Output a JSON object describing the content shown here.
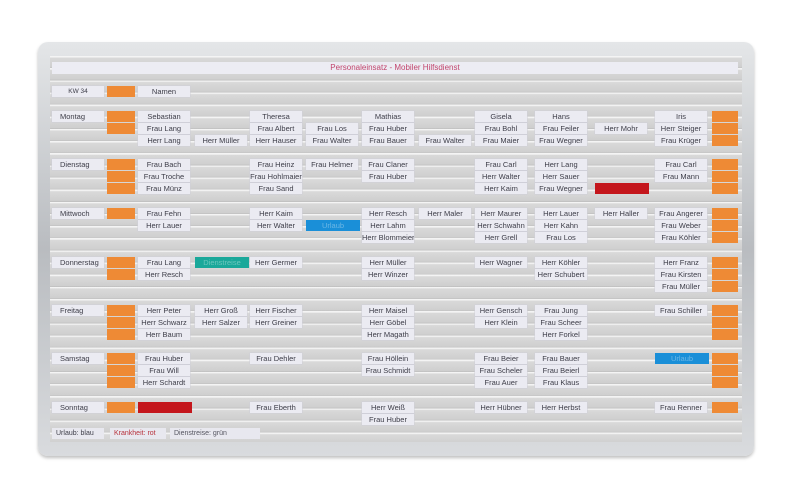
{
  "board": {
    "title": "Personaleinsatz - Mobiler Hilfsdienst",
    "week_label": "KW 34",
    "names_header": "Namen",
    "colors": {
      "flag": "#ee8a35",
      "blue": "#1a8fd8",
      "red": "#c4161c",
      "green": "#1aa89a"
    },
    "legend": [
      {
        "text": "Urlaub: blau",
        "color": "#3d3d48"
      },
      {
        "text": "Krankheit: rot",
        "color": "#b8323c"
      },
      {
        "text": "Dienstreise: grün",
        "color": "#555560"
      }
    ],
    "days": [
      {
        "name": "Montag",
        "rows": [
          {
            "left_flag": true,
            "right_flag": true,
            "cells": [
              "Sebastian",
              "",
              "Theresa",
              "",
              "Mathias",
              "",
              "Gisela",
              "Hans",
              "",
              "Iris"
            ]
          },
          {
            "left_flag": true,
            "right_flag": true,
            "cells": [
              "Frau Lang",
              "",
              "Frau Albert",
              "Frau Los",
              "Frau Huber",
              "",
              "Frau Bohl",
              "Frau Feiler",
              "Herr Mohr",
              "Herr Steiger"
            ]
          },
          {
            "left_flag": false,
            "right_flag": true,
            "cells": [
              "Herr Lang",
              "Herr Müller",
              "Herr Hauser",
              "Frau Walter",
              "Frau Bauer",
              "Frau Walter",
              "Frau Maier",
              "Frau Wegner",
              "",
              "Frau Krüger"
            ]
          }
        ]
      },
      {
        "name": "Dienstag",
        "rows": [
          {
            "left_flag": true,
            "right_flag": true,
            "cells": [
              "Frau Bach",
              "",
              "Frau Heinz",
              "Frau Helmer",
              "Frau Claner",
              "",
              "Frau Carl",
              "Herr Lang",
              "",
              "Frau Carl"
            ]
          },
          {
            "left_flag": true,
            "right_flag": true,
            "cells": [
              "Frau Troche",
              "",
              "Frau Hohlmaier",
              "",
              "Frau Huber",
              "",
              "Herr Walter",
              "Herr Sauer",
              "",
              "Frau Mann"
            ]
          },
          {
            "left_flag": true,
            "right_flag": true,
            "cells": [
              "Frau Münz",
              "",
              "Frau Sand",
              "",
              "",
              "",
              "Herr Kaim",
              "Frau Wegner",
              {
                "marker": "red",
                "label": ""
              },
              ""
            ]
          }
        ]
      },
      {
        "name": "Mittwoch",
        "rows": [
          {
            "left_flag": true,
            "right_flag": true,
            "cells": [
              "Frau Fehn",
              "",
              "Herr Kaim",
              "",
              "Herr Resch",
              "Herr Maler",
              "Herr Maurer",
              "Herr Lauer",
              "Herr Haller",
              "Frau Angerer"
            ]
          },
          {
            "left_flag": false,
            "right_flag": true,
            "cells": [
              "Herr Lauer",
              "",
              "Herr Walter",
              {
                "marker": "blue",
                "label": "Urlaub"
              },
              "Herr Lahm",
              "",
              "Herr Schwahn",
              "Herr Kahn",
              "",
              "Frau Weber"
            ]
          },
          {
            "left_flag": false,
            "right_flag": true,
            "cells": [
              "",
              "",
              "",
              "",
              "Herr Blommeier",
              "",
              "Herr Grell",
              "Frau Los",
              "",
              "Frau Köhler"
            ]
          }
        ]
      },
      {
        "name": "Donnerstag",
        "rows": [
          {
            "left_flag": true,
            "right_flag": true,
            "cells": [
              "Frau Lang",
              {
                "marker": "green",
                "label": "Dienstreise"
              },
              "Herr Germer",
              "",
              "Herr Müller",
              "",
              "Herr Wagner",
              "Herr Köhler",
              "",
              "Herr Franz"
            ]
          },
          {
            "left_flag": true,
            "right_flag": true,
            "cells": [
              "Herr Resch",
              "",
              "",
              "",
              "Herr Winzer",
              "",
              "",
              "Herr Schubert",
              "",
              "Frau Kirsten"
            ]
          },
          {
            "left_flag": false,
            "right_flag": true,
            "cells": [
              "",
              "",
              "",
              "",
              "",
              "",
              "",
              "",
              "",
              "Frau Müller"
            ]
          }
        ]
      },
      {
        "name": "Freitag",
        "rows": [
          {
            "left_flag": true,
            "right_flag": true,
            "cells": [
              "Herr Peter",
              "Herr Groß",
              "Herr Fischer",
              "",
              "Herr Maisel",
              "",
              "Herr Gensch",
              "Frau Jung",
              "",
              "Frau Schiller"
            ]
          },
          {
            "left_flag": true,
            "right_flag": true,
            "cells": [
              "Herr Schwarz",
              "Herr Salzer",
              "Herr Greiner",
              "",
              "Herr Göbel",
              "",
              "Herr Klein",
              "Frau Scheer",
              "",
              ""
            ]
          },
          {
            "left_flag": true,
            "right_flag": true,
            "cells": [
              "Herr Baum",
              "",
              "",
              "",
              "Herr Magath",
              "",
              "",
              "Herr Forkel",
              "",
              ""
            ]
          }
        ]
      },
      {
        "name": "Samstag",
        "rows": [
          {
            "left_flag": true,
            "right_flag": true,
            "cells": [
              "Frau Huber",
              "",
              "Frau Dehler",
              "",
              "Frau Höllein",
              "",
              "Frau Beier",
              "Frau Bauer",
              "",
              {
                "marker": "blue",
                "label": "Urlaub"
              }
            ]
          },
          {
            "left_flag": true,
            "right_flag": true,
            "cells": [
              "Frau Will",
              "",
              "",
              "",
              "Frau Schmidt",
              "",
              "Frau Scheler",
              "Frau Beierl",
              "",
              ""
            ]
          },
          {
            "left_flag": true,
            "right_flag": true,
            "cells": [
              "Herr Schardt",
              "",
              "",
              "",
              "",
              "",
              "Frau Auer",
              "Frau Klaus",
              "",
              ""
            ]
          }
        ]
      },
      {
        "name": "Sonntag",
        "rows": [
          {
            "left_flag": true,
            "right_flag": true,
            "cells": [
              {
                "marker": "red",
                "label": ""
              },
              "",
              "Frau Eberth",
              "",
              "Herr Weiß",
              "",
              "Herr Hübner",
              "Herr Herbst",
              "",
              "Frau Renner"
            ]
          },
          {
            "left_flag": false,
            "right_flag": false,
            "cells": [
              "",
              "",
              "",
              "",
              "Frau Huber",
              "",
              "",
              "",
              "",
              ""
            ]
          }
        ]
      }
    ]
  }
}
